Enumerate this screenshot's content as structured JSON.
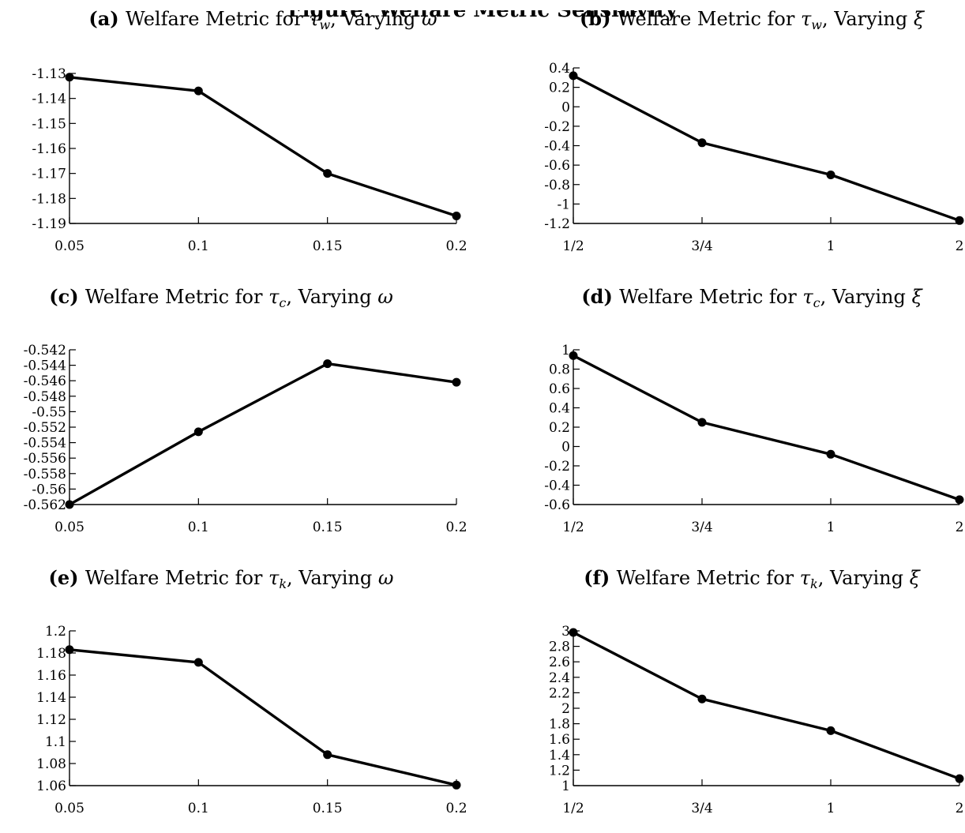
{
  "page": {
    "title": "Figure: Welfare Metric Sensitivity"
  },
  "chart_data": [
    {
      "type": "line",
      "label": "(a)",
      "title": "Welfare Metric for τ_w, Varying ω",
      "title_parts": [
        "Welfare Metric for ",
        "τ",
        "w",
        ", Varying ",
        "ω"
      ],
      "categories": [
        "0.05",
        "0.1",
        "0.15",
        "0.2"
      ],
      "x": [
        0.05,
        0.1,
        0.15,
        0.2
      ],
      "values": [
        -1.1315,
        -1.137,
        -1.17,
        -1.187
      ],
      "ylim": [
        -1.19,
        -1.13
      ],
      "yticks": [
        -1.13,
        -1.14,
        -1.15,
        -1.16,
        -1.17,
        -1.18,
        -1.19
      ],
      "ytick_labels": [
        "-1.13",
        "-1.14",
        "-1.15",
        "-1.16",
        "-1.17",
        "-1.18",
        "-1.19"
      ],
      "grid": false
    },
    {
      "type": "line",
      "label": "(b)",
      "title": "Welfare Metric for τ_w, Varying ξ",
      "title_parts": [
        "Welfare Metric for ",
        "τ",
        "w",
        ", Varying ",
        "ξ"
      ],
      "categories": [
        "1/2",
        "3/4",
        "1",
        "2"
      ],
      "values": [
        0.32,
        -0.37,
        -0.7,
        -1.17
      ],
      "ylim": [
        -1.2,
        0.4
      ],
      "yticks": [
        0.4,
        0.2,
        0,
        -0.2,
        -0.4,
        -0.6,
        -0.8,
        -1,
        -1.2
      ],
      "ytick_labels": [
        "0.4",
        "0.2",
        "0",
        "-0.2",
        "-0.4",
        "-0.6",
        "-0.8",
        "-1",
        "-1.2"
      ],
      "grid": false
    },
    {
      "type": "line",
      "label": "(c)",
      "title": "Welfare Metric for τ_c, Varying ω",
      "title_parts": [
        "Welfare Metric for ",
        "τ",
        "c",
        ", Varying ",
        "ω"
      ],
      "categories": [
        "0.05",
        "0.1",
        "0.15",
        "0.2"
      ],
      "x": [
        0.05,
        0.1,
        0.15,
        0.2
      ],
      "values": [
        -0.562,
        -0.5526,
        -0.5438,
        -0.5462
      ],
      "ylim": [
        -0.562,
        -0.542
      ],
      "yticks": [
        -0.542,
        -0.544,
        -0.546,
        -0.548,
        -0.55,
        -0.552,
        -0.554,
        -0.556,
        -0.558,
        -0.56,
        -0.562
      ],
      "ytick_labels": [
        "-0.542",
        "-0.544",
        "-0.546",
        "-0.548",
        "-0.55",
        "-0.552",
        "-0.554",
        "-0.556",
        "-0.558",
        "-0.56",
        "-0.562"
      ],
      "grid": false
    },
    {
      "type": "line",
      "label": "(d)",
      "title": "Welfare Metric for τ_c, Varying ξ",
      "title_parts": [
        "Welfare Metric for ",
        "τ",
        "c",
        ", Varying ",
        "ξ"
      ],
      "categories": [
        "1/2",
        "3/4",
        "1",
        "2"
      ],
      "values": [
        0.94,
        0.25,
        -0.08,
        -0.55
      ],
      "ylim": [
        -0.6,
        1.0
      ],
      "yticks": [
        1,
        0.8,
        0.6,
        0.4,
        0.2,
        0,
        -0.2,
        -0.4,
        -0.6
      ],
      "ytick_labels": [
        "1",
        "0.8",
        "0.6",
        "0.4",
        "0.2",
        "0",
        "-0.2",
        "-0.4",
        "-0.6"
      ],
      "grid": false
    },
    {
      "type": "line",
      "label": "(e)",
      "title": "Welfare Metric for τ_k, Varying ω",
      "title_parts": [
        "Welfare Metric for ",
        "τ",
        "k",
        ", Varying ",
        "ω"
      ],
      "categories": [
        "0.05",
        "0.1",
        "0.15",
        "0.2"
      ],
      "x": [
        0.05,
        0.1,
        0.15,
        0.2
      ],
      "values": [
        1.183,
        1.1715,
        1.088,
        1.0605
      ],
      "ylim": [
        1.06,
        1.2
      ],
      "yticks": [
        1.2,
        1.18,
        1.16,
        1.14,
        1.12,
        1.1,
        1.08,
        1.06
      ],
      "ytick_labels": [
        "1.2",
        "1.18",
        "1.16",
        "1.14",
        "1.12",
        "1.1",
        "1.08",
        "1.06"
      ],
      "grid": false
    },
    {
      "type": "line",
      "label": "(f)",
      "title": "Welfare Metric for τ_k, Varying ξ",
      "title_parts": [
        "Welfare Metric for ",
        "τ",
        "k",
        ", Varying ",
        "ξ"
      ],
      "categories": [
        "1/2",
        "3/4",
        "1",
        "2"
      ],
      "values": [
        2.98,
        2.12,
        1.71,
        1.09
      ],
      "ylim": [
        1.0,
        3.0
      ],
      "yticks": [
        3,
        2.8,
        2.6,
        2.4,
        2.2,
        2,
        1.8,
        1.6,
        1.4,
        1.2,
        1
      ],
      "ytick_labels": [
        "3",
        "2.8",
        "2.6",
        "2.4",
        "2.2",
        "2",
        "1.8",
        "1.6",
        "1.4",
        "1.2",
        "1"
      ],
      "grid": false
    }
  ]
}
